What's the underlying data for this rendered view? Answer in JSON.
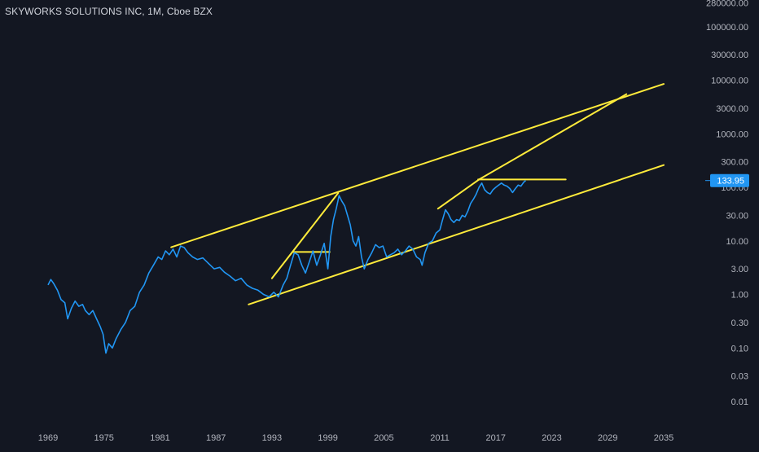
{
  "chart_data": {
    "type": "line",
    "title": "SKYWORKS SOLUTIONS INC, 1M, Cboe BZX",
    "y_scale": "log",
    "ylim": [
      0.006,
      300000
    ],
    "xlim": [
      1965.0,
      2038.5
    ],
    "x_ticks": [
      "1969",
      "1975",
      "1981",
      "1987",
      "1993",
      "1999",
      "2005",
      "2011",
      "2017",
      "2023",
      "2029",
      "2035"
    ],
    "x_tick_values": [
      1969,
      1975,
      1981,
      1987,
      1993,
      1999,
      2005,
      2011,
      2017,
      2023,
      2029,
      2035
    ],
    "y_ticks": [
      "0.01",
      "0.03",
      "0.10",
      "0.30",
      "1.00",
      "3.00",
      "10.00",
      "30.00",
      "100.00",
      "300.00",
      "1000.00",
      "3000.00",
      "10000.00",
      "30000.00",
      "100000.00",
      "280000.00"
    ],
    "y_tick_values": [
      0.01,
      0.03,
      0.1,
      0.3,
      1,
      3,
      10,
      30,
      100,
      300,
      1000,
      3000,
      10000,
      30000,
      100000,
      280000
    ],
    "last_price_label": "133.95",
    "last_price": 133.95,
    "grid": false,
    "colors": {
      "background": "#131722",
      "price_line": "#2196f3",
      "drawings": "#ffeb3b",
      "axis_text": "#b2b5be"
    },
    "series": [
      {
        "values_x": [
          1969.0,
          1969.3,
          1969.6,
          1970.0,
          1970.4,
          1970.8,
          1971.1,
          1971.5,
          1971.9,
          1972.3,
          1972.7,
          1973.0,
          1973.4,
          1973.8,
          1974.2,
          1974.6,
          1974.9,
          1975.2,
          1975.5,
          1975.9,
          1976.3,
          1976.8,
          1977.3,
          1977.8,
          1978.3,
          1978.8,
          1979.3,
          1979.8,
          1980.3,
          1980.8,
          1981.2,
          1981.6,
          1982.0,
          1982.4,
          1982.8,
          1983.2,
          1983.6,
          1984.0,
          1984.5,
          1985.0,
          1985.6,
          1986.2,
          1986.8,
          1987.4,
          1987.9,
          1988.5,
          1989.1,
          1989.7,
          1990.3,
          1990.9,
          1991.5,
          1992.1,
          1992.7,
          1993.2,
          1993.7,
          1994.2,
          1994.6,
          1995.0,
          1995.4,
          1995.8,
          1996.2,
          1996.6,
          1997.0,
          1997.4,
          1997.8,
          1998.2,
          1998.6,
          1999.0,
          1999.3,
          1999.6,
          1999.9,
          2000.2,
          2000.5,
          2000.8,
          2001.1,
          2001.4,
          2001.7,
          2002.0,
          2002.3,
          2002.6,
          2002.9,
          2003.3,
          2003.7,
          2004.1,
          2004.5,
          2004.9,
          2005.3,
          2005.7,
          2006.1,
          2006.5,
          2006.9,
          2007.3,
          2007.7,
          2008.1,
          2008.5,
          2008.9,
          2009.1,
          2009.4,
          2009.8,
          2010.2,
          2010.6,
          2011.0,
          2011.3,
          2011.6,
          2011.9,
          2012.2,
          2012.5,
          2012.8,
          2013.1,
          2013.4,
          2013.7,
          2014.0,
          2014.3,
          2014.6,
          2014.9,
          2015.2,
          2015.5,
          2015.8,
          2016.1,
          2016.4,
          2016.7,
          2017.0,
          2017.3,
          2017.6,
          2017.9,
          2018.2,
          2018.5,
          2018.8,
          2019.1,
          2019.4,
          2019.7,
          2020.0,
          2020.2
        ],
        "values_y": [
          1.5,
          1.9,
          1.6,
          1.2,
          0.8,
          0.7,
          0.35,
          0.55,
          0.75,
          0.6,
          0.65,
          0.5,
          0.42,
          0.5,
          0.35,
          0.25,
          0.18,
          0.08,
          0.12,
          0.1,
          0.15,
          0.22,
          0.3,
          0.5,
          0.6,
          1.1,
          1.5,
          2.5,
          3.5,
          5.0,
          4.5,
          6.5,
          5.5,
          7.0,
          5.0,
          8.0,
          7.5,
          6.0,
          5.0,
          4.5,
          4.8,
          3.8,
          3.0,
          3.2,
          2.6,
          2.2,
          1.8,
          2.0,
          1.5,
          1.3,
          1.2,
          1.0,
          0.9,
          1.1,
          0.9,
          1.5,
          2.0,
          3.5,
          6.0,
          5.5,
          3.5,
          2.5,
          4.0,
          6.5,
          3.5,
          5.5,
          9.0,
          3.0,
          12.0,
          25.0,
          40.0,
          70.0,
          55.0,
          45.0,
          30.0,
          20.0,
          10.0,
          8.0,
          12.0,
          5.0,
          3.0,
          4.5,
          6.0,
          8.5,
          7.5,
          8.0,
          5.0,
          5.5,
          6.0,
          7.0,
          5.5,
          6.5,
          8.0,
          7.0,
          5.0,
          4.5,
          3.5,
          6.0,
          9.0,
          10.0,
          14.0,
          16.0,
          25.0,
          38.0,
          32.0,
          25.0,
          22.0,
          25.0,
          24.0,
          30.0,
          28.0,
          36.0,
          50.0,
          60.0,
          75.0,
          100.0,
          120.0,
          90.0,
          80.0,
          75.0,
          90.0,
          100.0,
          110.0,
          120.0,
          110.0,
          105.0,
          95.0,
          80.0,
          95.0,
          110.0,
          105.0,
          125.0,
          133.95
        ]
      }
    ],
    "drawings": [
      {
        "label": "upper-channel-line",
        "from": [
          1982.2,
          7.6
        ],
        "to": [
          2035.0,
          8500.0
        ]
      },
      {
        "label": "lower-channel-line",
        "from": [
          1990.5,
          0.65
        ],
        "to": [
          2035.0,
          260.0
        ]
      },
      {
        "label": "rally-line-1993-2000",
        "from": [
          1993.0,
          2.0
        ],
        "to": [
          2000.1,
          78.0
        ]
      },
      {
        "label": "resistance-1995",
        "from": [
          1995.2,
          6.2
        ],
        "to": [
          1999.2,
          6.2
        ]
      },
      {
        "label": "rally-line-2011-2015",
        "from": [
          2010.8,
          40.0
        ],
        "to": [
          2015.2,
          140.0
        ]
      },
      {
        "label": "resistance-2015",
        "from": [
          2015.1,
          140.0
        ],
        "to": [
          2024.5,
          140.0
        ]
      },
      {
        "label": "projection-line",
        "from": [
          2015.2,
          140.0
        ],
        "to": [
          2031.0,
          5500.0
        ]
      }
    ]
  }
}
